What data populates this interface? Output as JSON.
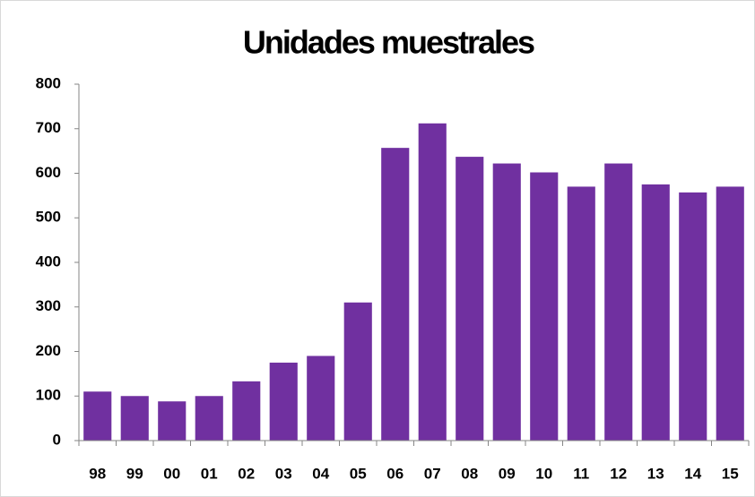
{
  "chart_data": {
    "type": "bar",
    "title": "Unidades muestrales",
    "categories": [
      "98",
      "99",
      "00",
      "01",
      "02",
      "03",
      "04",
      "05",
      "06",
      "07",
      "08",
      "09",
      "10",
      "11",
      "12",
      "13",
      "14",
      "15"
    ],
    "values": [
      110,
      100,
      88,
      100,
      133,
      175,
      190,
      310,
      657,
      712,
      637,
      622,
      602,
      570,
      622,
      575,
      557,
      570
    ],
    "color": "#7030a0",
    "ylim": [
      0,
      800
    ],
    "yticks": [
      0,
      100,
      200,
      300,
      400,
      500,
      600,
      700,
      800
    ],
    "grid": false
  }
}
